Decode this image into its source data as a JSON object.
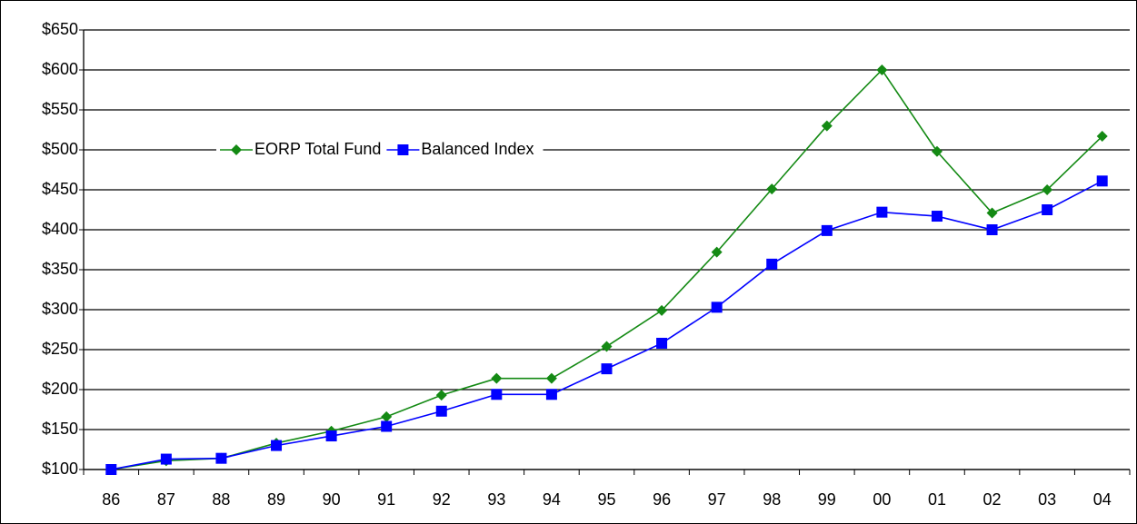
{
  "chart_data": {
    "type": "line",
    "categories": [
      "86",
      "87",
      "88",
      "89",
      "90",
      "91",
      "92",
      "93",
      "94",
      "95",
      "96",
      "97",
      "98",
      "99",
      "00",
      "01",
      "02",
      "03",
      "04"
    ],
    "series": [
      {
        "name": "EORP Total Fund",
        "color": "#148a14",
        "marker": "diamond",
        "values": [
          100,
          111,
          114,
          133,
          148,
          166,
          193,
          214,
          214,
          254,
          299,
          372,
          451,
          530,
          600,
          498,
          421,
          450,
          517
        ]
      },
      {
        "name": "Balanced Index",
        "color": "#0000ff",
        "marker": "square",
        "values": [
          100,
          113,
          114,
          130,
          142,
          154,
          173,
          194,
          194,
          226,
          258,
          303,
          357,
          399,
          422,
          417,
          400,
          425,
          461
        ]
      }
    ],
    "ylim": [
      100,
      650
    ],
    "yticks": [
      {
        "value": 100,
        "label": "$100"
      },
      {
        "value": 150,
        "label": "$150"
      },
      {
        "value": 200,
        "label": "$200"
      },
      {
        "value": 250,
        "label": "$250"
      },
      {
        "value": 300,
        "label": "$300"
      },
      {
        "value": 350,
        "label": "$350"
      },
      {
        "value": 400,
        "label": "$400"
      },
      {
        "value": 450,
        "label": "$450"
      },
      {
        "value": 500,
        "label": "$500"
      },
      {
        "value": 550,
        "label": "$550"
      },
      {
        "value": 600,
        "label": "$600"
      },
      {
        "value": 650,
        "label": "$650"
      }
    ],
    "grid": true,
    "legend_position": "upper left"
  }
}
